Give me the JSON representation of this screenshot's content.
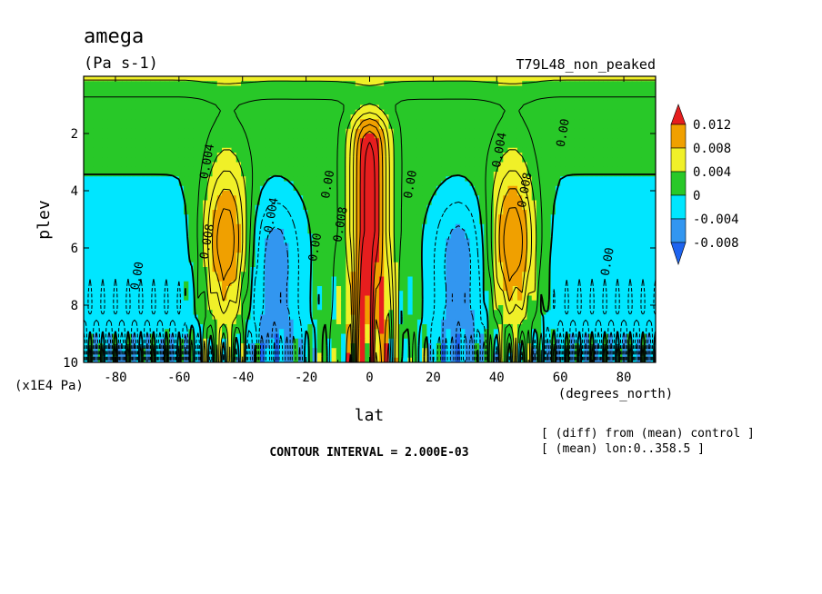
{
  "chart_data": {
    "type": "heatmap",
    "title": "amega",
    "units": "(Pa s-1)",
    "run_name": "T79L48_non_peaked",
    "xlabel": "lat",
    "xunits": "(degrees_north)",
    "ylabel": "plev",
    "yunits": "(x1E4 Pa)",
    "xlim": [
      -90,
      90
    ],
    "ylim": [
      0,
      10
    ],
    "y_inverted": true,
    "x_ticks": [
      -80,
      -60,
      -40,
      -20,
      0,
      20,
      40,
      60,
      80
    ],
    "x_tick_labels": [
      "-80",
      "-60",
      "-40",
      "-20",
      "0",
      "20",
      "40",
      "60",
      "80"
    ],
    "y_ticks": [
      2,
      4,
      6,
      8,
      10
    ],
    "y_tick_labels": [
      "2",
      "4",
      "6",
      "8",
      "10"
    ],
    "contour_interval_text": "CONTOUR INTERVAL = 2.000E-03",
    "notes": [
      "[ (diff) from (mean) control ]",
      "[ (mean) lon:0..358.5 ]"
    ],
    "colorbar": {
      "levels": [
        -0.008,
        -0.004,
        0,
        0.004,
        0.008,
        0.012
      ],
      "labels": [
        "0.012",
        "0.008",
        "0.004",
        "0",
        "-0.004",
        "-0.008"
      ],
      "colors": [
        "#1e64f0",
        "#00c8ff",
        "#00e0ff",
        "#28c828",
        "#f0f028",
        "#f0a000",
        "#e61e1e"
      ],
      "class_colors": {
        "below_-0.008": "#1e64f0",
        "-0.008_to_-0.004": "#3296f0",
        "-0.004_to_0": "#00e6ff",
        "0_to_0.004": "#28c828",
        "0.004_to_0.008": "#f0f028",
        "0.008_to_0.012": "#f0a000",
        "above_0.012": "#e61e1e"
      }
    },
    "features": [
      {
        "name": "equatorial_core",
        "lat": 0,
        "plev_top": 1.2,
        "plev_bottom": 10,
        "peak": 0.014
      },
      {
        "name": "sh_midlat_max",
        "lat": -45,
        "plev_top": 1.8,
        "plev_bottom": 9.5,
        "peak": 0.011
      },
      {
        "name": "nh_midlat_max",
        "lat": 45,
        "plev_top": 1.8,
        "plev_bottom": 9.5,
        "peak": 0.011
      },
      {
        "name": "sh_subtropical_min",
        "lat": -30,
        "plev_top": 3,
        "plev_bottom": 10,
        "peak": -0.007
      },
      {
        "name": "nh_subtropical_min",
        "lat": 28,
        "plev_top": 3,
        "plev_bottom": 10,
        "peak": -0.007
      }
    ],
    "contour_labels": [
      {
        "text": "0.004",
        "lat": -50,
        "plev": 3.0
      },
      {
        "text": "0.008",
        "lat": -50,
        "plev": 5.8
      },
      {
        "text": "-0.004",
        "lat": -30,
        "plev": 5.0
      },
      {
        "text": "0.00",
        "lat": -16,
        "plev": 6.0
      },
      {
        "text": "0.00",
        "lat": -12,
        "plev": 3.8
      },
      {
        "text": "0.008",
        "lat": -8,
        "plev": 5.2
      },
      {
        "text": "0.00",
        "lat": 14,
        "plev": 3.8
      },
      {
        "text": "0.004",
        "lat": 42,
        "plev": 2.6
      },
      {
        "text": "0.008",
        "lat": 50,
        "plev": 4.0
      },
      {
        "text": "0.00",
        "lat": 62,
        "plev": 2.0
      },
      {
        "text": "0.00",
        "lat": -72,
        "plev": 7.0
      },
      {
        "text": "0.00",
        "lat": 76,
        "plev": 6.5
      }
    ]
  }
}
